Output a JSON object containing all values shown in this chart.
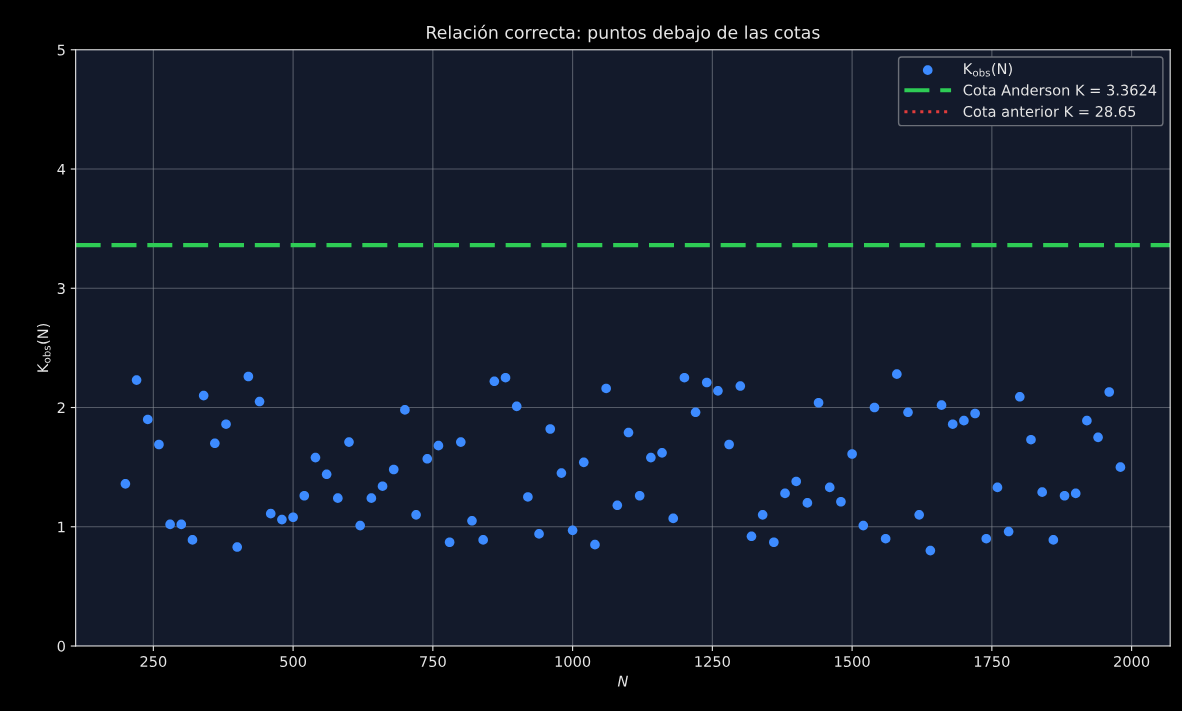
{
  "chart_data": {
    "type": "scatter",
    "title": "Relación correcta: puntos debajo de las cotas",
    "xlabel": "N",
    "ylabel": "K$_{obs}$(N)",
    "x": [
      200,
      220,
      240,
      260,
      280,
      300,
      320,
      340,
      360,
      380,
      400,
      420,
      440,
      460,
      480,
      500,
      520,
      540,
      560,
      580,
      600,
      620,
      640,
      660,
      680,
      700,
      720,
      740,
      760,
      780,
      800,
      820,
      840,
      860,
      880,
      900,
      920,
      940,
      960,
      980,
      1000,
      1020,
      1040,
      1060,
      1080,
      1100,
      1120,
      1140,
      1160,
      1180,
      1200,
      1220,
      1240,
      1260,
      1280,
      1300,
      1320,
      1340,
      1360,
      1380,
      1400,
      1420,
      1440,
      1460,
      1480,
      1500,
      1520,
      1540,
      1560,
      1580,
      1600,
      1620,
      1640,
      1660,
      1680,
      1700,
      1720,
      1740,
      1760,
      1780,
      1800,
      1820,
      1840,
      1860,
      1880,
      1900,
      1920,
      1940,
      1960,
      1980
    ],
    "series": [
      {
        "name": "K$_{obs}$(N)",
        "color": "#3d8bff",
        "values": [
          1.36,
          2.23,
          1.9,
          1.69,
          1.02,
          1.02,
          0.89,
          2.1,
          1.7,
          1.86,
          0.83,
          2.26,
          2.05,
          1.11,
          1.06,
          1.08,
          1.26,
          1.58,
          1.44,
          1.24,
          1.71,
          1.01,
          1.24,
          1.34,
          1.48,
          1.98,
          1.1,
          1.57,
          1.68,
          0.87,
          1.71,
          1.05,
          0.89,
          2.22,
          2.25,
          2.01,
          1.25,
          0.94,
          1.82,
          1.45,
          0.97,
          1.54,
          0.85,
          2.16,
          1.18,
          1.79,
          1.26,
          1.58,
          1.62,
          1.07,
          2.25,
          1.96,
          2.21,
          2.14,
          1.69,
          2.18,
          0.92,
          1.1,
          0.87,
          1.28,
          1.38,
          1.2,
          2.04,
          1.33,
          1.21,
          1.61,
          1.01,
          2.0,
          0.9,
          2.28,
          1.96,
          1.1,
          0.8,
          2.02,
          1.86,
          1.89,
          1.95,
          0.9,
          1.33,
          0.96,
          2.09,
          1.73,
          1.29,
          0.89,
          1.26,
          1.28,
          1.89,
          1.75,
          2.13,
          1.5
        ]
      }
    ],
    "xlim": [
      111,
      2069
    ],
    "ylim": [
      0,
      5
    ],
    "xticks": [
      250,
      500,
      750,
      1000,
      1250,
      1500,
      1750,
      2000
    ],
    "yticks": [
      0,
      1,
      2,
      3,
      4,
      5
    ],
    "grid": true,
    "legend": "top right",
    "marker": "circle",
    "ref_lines": [
      {
        "axis": "y",
        "value": 3.3624,
        "label": "Cota Anderson K = 3.3624",
        "color": "#2ecc55",
        "line_style": "dashed"
      },
      {
        "label": "Cota anterior K = 28.65",
        "color": "#e03c3c",
        "line_style": "dotted"
      }
    ]
  }
}
